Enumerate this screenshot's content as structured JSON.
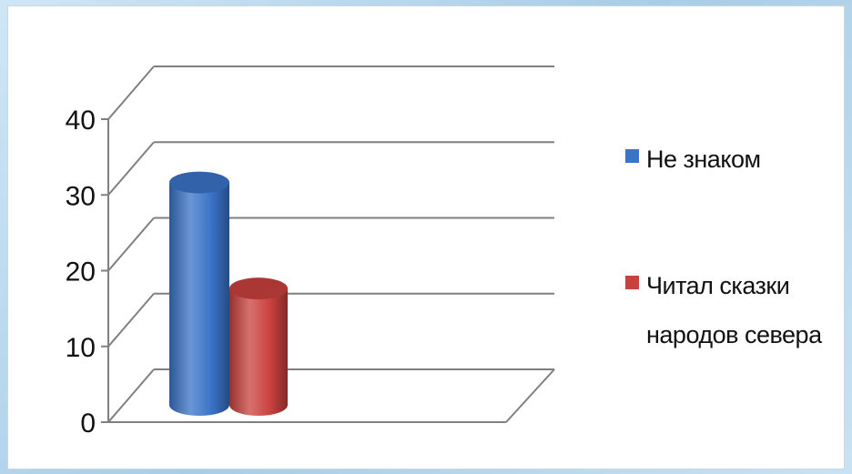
{
  "chart_data": {
    "type": "bar",
    "style": "3d-cylinder",
    "categories": [
      ""
    ],
    "series": [
      {
        "name": "Не знаком",
        "values": [
          32
        ],
        "color": "#3a73c8"
      },
      {
        "name": "Читал сказки народов севера",
        "values": [
          18
        ],
        "color": "#c9413e"
      }
    ],
    "yticks": [
      "0",
      "10",
      "20",
      "30",
      "40"
    ],
    "ylim": [
      0,
      40
    ],
    "grid": true,
    "legend": "right",
    "title": "",
    "xlabel": "",
    "ylabel": ""
  },
  "legend": {
    "items": [
      {
        "lines": [
          "Не знаком"
        ],
        "color": "#3a73c8"
      },
      {
        "lines": [
          "Читал сказки",
          "народов севера"
        ],
        "color": "#c9413e"
      }
    ]
  }
}
